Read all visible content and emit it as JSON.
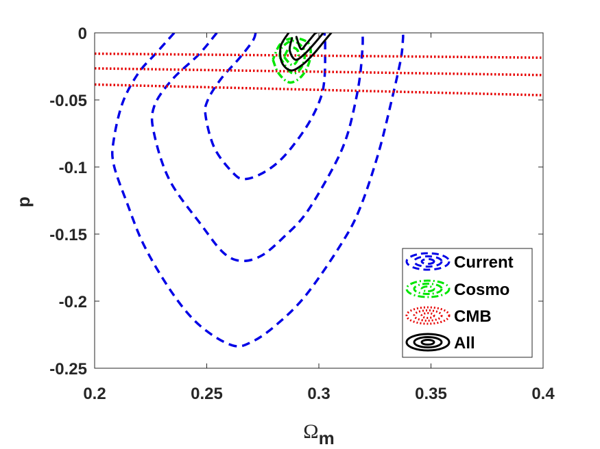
{
  "chart_data": {
    "type": "contour",
    "xlabel": "Ω",
    "xlabel_sub": "m",
    "ylabel": "p",
    "xlim": [
      0.2,
      0.4
    ],
    "ylim": [
      -0.25,
      0
    ],
    "xticks": [
      "0.2",
      "0.25",
      "0.3",
      "0.35",
      "0.4"
    ],
    "yticks": [
      "0",
      "-0.05",
      "-0.1",
      "-0.15",
      "-0.2",
      "-0.25"
    ],
    "legend_position": "bottom-right",
    "colors": {
      "Current": "#0000e6",
      "Cosmo": "#00e600",
      "CMB": "#e60000",
      "All": "#000000"
    },
    "series": [
      {
        "name": "Current",
        "style": "dashed",
        "contours": [
          [
            [
              0.2718,
              0
            ],
            [
              0.2705,
              -0.006
            ],
            [
              0.2645,
              -0.019
            ],
            [
              0.2565,
              -0.034
            ],
            [
              0.2505,
              -0.05
            ],
            [
              0.2495,
              -0.062
            ],
            [
              0.2535,
              -0.086
            ],
            [
              0.2615,
              -0.104
            ],
            [
              0.2668,
              -0.109
            ],
            [
              0.2755,
              -0.104
            ],
            [
              0.2845,
              -0.092
            ],
            [
              0.2945,
              -0.07
            ],
            [
              0.3005,
              -0.05
            ],
            [
              0.3025,
              -0.034
            ],
            [
              0.3028,
              -0.01
            ],
            [
              0.3025,
              0
            ]
          ],
          [
            [
              0.2545,
              0
            ],
            [
              0.2465,
              -0.016
            ],
            [
              0.2345,
              -0.035
            ],
            [
              0.2265,
              -0.055
            ],
            [
              0.2265,
              -0.075
            ],
            [
              0.2335,
              -0.11
            ],
            [
              0.2475,
              -0.143
            ],
            [
              0.2575,
              -0.164
            ],
            [
              0.2655,
              -0.17
            ],
            [
              0.2745,
              -0.166
            ],
            [
              0.2845,
              -0.152
            ],
            [
              0.2945,
              -0.134
            ],
            [
              0.3065,
              -0.1
            ],
            [
              0.3125,
              -0.077
            ],
            [
              0.3165,
              -0.05
            ],
            [
              0.3185,
              -0.03
            ],
            [
              0.3195,
              -0.01
            ],
            [
              0.3195,
              0
            ]
          ],
          [
            [
              0.2355,
              0
            ],
            [
              0.2275,
              -0.015
            ],
            [
              0.2195,
              -0.03
            ],
            [
              0.2125,
              -0.052
            ],
            [
              0.2085,
              -0.08
            ],
            [
              0.2085,
              -0.098
            ],
            [
              0.2145,
              -0.127
            ],
            [
              0.2225,
              -0.16
            ],
            [
              0.2355,
              -0.196
            ],
            [
              0.2475,
              -0.219
            ],
            [
              0.2615,
              -0.233
            ],
            [
              0.2705,
              -0.23
            ],
            [
              0.2815,
              -0.217
            ],
            [
              0.2945,
              -0.195
            ],
            [
              0.3105,
              -0.156
            ],
            [
              0.3185,
              -0.13
            ],
            [
              0.3265,
              -0.09
            ],
            [
              0.3325,
              -0.05
            ],
            [
              0.3365,
              -0.02
            ],
            [
              0.3375,
              -0.005
            ],
            [
              0.3375,
              0
            ]
          ]
        ]
      },
      {
        "name": "Cosmo",
        "style": "dashdot",
        "contours": [
          [
            [
              0.2845,
              -0.018
            ],
            [
              0.288,
              -0.024
            ],
            [
              0.2905,
              -0.02
            ],
            [
              0.2905,
              -0.013
            ],
            [
              0.287,
              -0.011
            ],
            [
              0.2845,
              -0.018
            ]
          ],
          [
            [
              0.2825,
              -0.018
            ],
            [
              0.288,
              -0.03
            ],
            [
              0.2925,
              -0.025
            ],
            [
              0.2935,
              -0.013
            ],
            [
              0.2885,
              -0.006
            ],
            [
              0.2835,
              -0.011
            ],
            [
              0.2825,
              -0.018
            ]
          ],
          [
            [
              0.2795,
              -0.02
            ],
            [
              0.282,
              -0.03
            ],
            [
              0.287,
              -0.037
            ],
            [
              0.2925,
              -0.032
            ],
            [
              0.296,
              -0.02
            ],
            [
              0.2955,
              -0.008
            ],
            [
              0.289,
              -0.004
            ],
            [
              0.283,
              -0.008
            ],
            [
              0.2795,
              -0.02
            ]
          ]
        ]
      },
      {
        "name": "CMB",
        "style": "dotted",
        "lines": [
          [
            [
              0.2,
              -0.0155
            ],
            [
              0.4,
              -0.0185
            ]
          ],
          [
            [
              0.2,
              -0.0265
            ],
            [
              0.4,
              -0.0315
            ]
          ],
          [
            [
              0.2,
              -0.0385
            ],
            [
              0.4,
              -0.0465
            ]
          ]
        ]
      },
      {
        "name": "All",
        "style": "solid",
        "contours": [
          [
            [
              0.29,
              -0.003
            ],
            [
              0.292,
              -0.012
            ],
            [
              0.2945,
              -0.008
            ],
            [
              0.298,
              -0.001
            ],
            [
              0.299,
              0
            ]
          ],
          [
            [
              0.288,
              -0.004
            ],
            [
              0.287,
              -0.013
            ],
            [
              0.2895,
              -0.02
            ],
            [
              0.2935,
              -0.016
            ],
            [
              0.2985,
              -0.007
            ],
            [
              0.302,
              0
            ]
          ],
          [
            [
              0.2865,
              0
            ],
            [
              0.283,
              -0.01
            ],
            [
              0.2835,
              -0.022
            ],
            [
              0.2875,
              -0.028
            ],
            [
              0.2925,
              -0.024
            ],
            [
              0.2975,
              -0.016
            ],
            [
              0.3025,
              -0.006
            ],
            [
              0.3055,
              0
            ]
          ]
        ]
      }
    ]
  }
}
